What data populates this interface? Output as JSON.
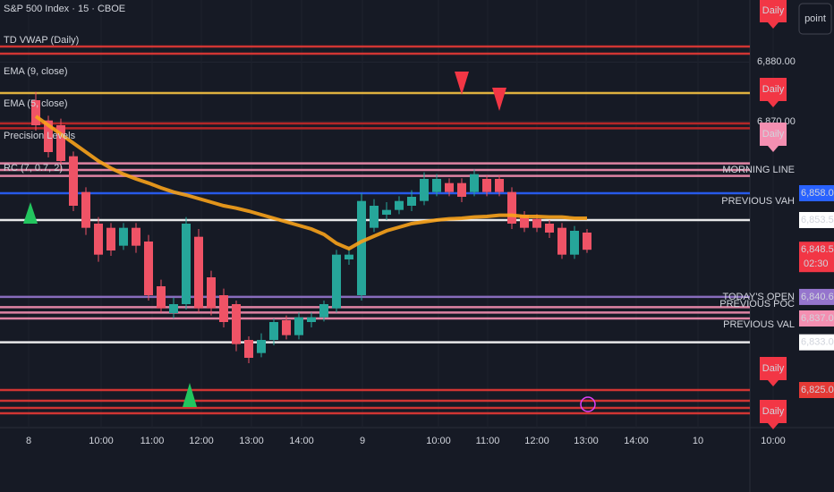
{
  "chart_data": {
    "type": "candlestick",
    "title": "S&P 500 Index · 15 · CBOE",
    "indicators": [
      "EMA (9, close)",
      "EMA (5, close)",
      "Precision Levels",
      "RC (7, 0.7, 2)"
    ],
    "up_color": "#26a69a",
    "down_color": "#ef5366",
    "open": [
      6873.6,
      6870.2,
      6869.4,
      6864.2,
      6858.2,
      6852.9,
      6852.2,
      6849.2,
      6852.2,
      6849.9,
      6842.4,
      6837.9,
      6839.4,
      6850.7,
      6843.9,
      6840.9,
      6839.4,
      6833.4,
      6831.2,
      6833.4,
      6836.7,
      6834.2,
      6836.4,
      6837.2,
      6838.7,
      6846.9,
      6840.9,
      6852.2,
      6854.4,
      6855.2,
      6855.9,
      6856.7,
      6858.2,
      6859.7,
      6859.7,
      6858.2,
      6860.4,
      6860.4,
      6858.2,
      6854.4,
      6853.7,
      6852.9,
      6852.2,
      6847.7,
      6851.4
    ],
    "high": [
      6875,
      6871,
      6870.5,
      6865,
      6859,
      6854,
      6853,
      6853,
      6853,
      6851,
      6843.5,
      6840.5,
      6854,
      6852,
      6845,
      6842,
      6840,
      6834,
      6834.5,
      6837,
      6837.5,
      6838,
      6838,
      6840,
      6848.5,
      6849,
      6858,
      6857,
      6856.5,
      6857.5,
      6858.5,
      6861.5,
      6861.2,
      6860.5,
      6860.5,
      6862,
      6861,
      6861,
      6859,
      6855,
      6854.5,
      6853.5,
      6853,
      6852.5,
      6852
    ],
    "low": [
      6868.5,
      6864,
      6862,
      6855,
      6851,
      6846.5,
      6847.5,
      6848.5,
      6848,
      6840,
      6838,
      6837,
      6838.5,
      6838,
      6837.5,
      6835.5,
      6831.5,
      6829.5,
      6830.5,
      6832.5,
      6833.5,
      6833.5,
      6835.5,
      6836.5,
      6838,
      6846,
      6840,
      6851.5,
      6853.5,
      6854.5,
      6855,
      6856,
      6857.5,
      6857.5,
      6856.5,
      6857.5,
      6857.5,
      6857.5,
      6852,
      6851.5,
      6851.5,
      6850.5,
      6847,
      6847,
      6848
    ],
    "close": [
      6869.4,
      6864.9,
      6863.4,
      6855.9,
      6852.2,
      6847.7,
      6848.4,
      6852.2,
      6849.2,
      6840.9,
      6838.7,
      6839.4,
      6852.9,
      6838.7,
      6838.7,
      6836.4,
      6832.7,
      6830.4,
      6833.4,
      6836.4,
      6834.2,
      6837.2,
      6837.2,
      6839.4,
      6847.7,
      6847.7,
      6856.7,
      6855.9,
      6855.2,
      6856.7,
      6857.4,
      6860.4,
      6860.4,
      6858.2,
      6857.4,
      6861.2,
      6858.2,
      6858.2,
      6852.9,
      6852.2,
      6852.2,
      6851.4,
      6847.7,
      6851.7,
      6848.52
    ],
    "series": [
      {
        "name": "TD VWAP (Daily)",
        "color": "#f7a21b",
        "values": [
          6870.9,
          6869.4,
          6867.9,
          6866.4,
          6864.9,
          6863.4,
          6862.2,
          6861.2,
          6860.4,
          6859.7,
          6858.9,
          6858.2,
          6857.7,
          6857.1,
          6856.5,
          6855.9,
          6855.5,
          6855,
          6854.4,
          6853.8,
          6853.2,
          6852.6,
          6852,
          6851.1,
          6849.6,
          6848.7,
          6849.9,
          6850.8,
          6851.7,
          6852.3,
          6852.9,
          6853.2,
          6853.5,
          6853.7,
          6853.8,
          6854,
          6854.1,
          6854.3,
          6854.3,
          6854.1,
          6854.1,
          6854,
          6854,
          6853.8,
          6853.8
        ]
      }
    ],
    "levels": [
      {
        "price": 6882.6,
        "color": "#e53935"
      },
      {
        "price": 6881.4,
        "color": "#e53935"
      },
      {
        "price": 6874.8,
        "color": "#f5c242"
      },
      {
        "price": 6869.7,
        "color": "#c62828"
      },
      {
        "price": 6868.9,
        "color": "#c62828"
      },
      {
        "price": 6863,
        "color": "#f48fb1"
      },
      {
        "price": 6861.9,
        "color": "#f48fb1"
      },
      {
        "price": 6860.9,
        "color": "#f48fb1"
      },
      {
        "price": 6858,
        "color": "#2962ff"
      },
      {
        "price": 6853.5,
        "color": "#ffffff"
      },
      {
        "price": 6840.61,
        "color": "#9575cd"
      },
      {
        "price": 6838.9,
        "color": "#f48fb1"
      },
      {
        "price": 6838,
        "color": "#f48fb1"
      },
      {
        "price": 6837,
        "color": "#f48fb1"
      },
      {
        "price": 6833,
        "color": "#ffffff"
      },
      {
        "price": 6825,
        "color": "#e53935"
      },
      {
        "price": 6823.2,
        "color": "#e53935"
      },
      {
        "price": 6822,
        "color": "#e53935"
      },
      {
        "price": 6821.1,
        "color": "#e53935"
      }
    ],
    "price_labels": [
      {
        "value": 6858,
        "label": "6,858.00",
        "color": "#2962ff",
        "text_color": "#ffffff"
      },
      {
        "value": 6853.5,
        "label": "6,853.50",
        "color": "#ffffff",
        "text_color": "#131722"
      },
      {
        "value": 6848.52,
        "label": "6,848.52",
        "color": "#f23645",
        "text_color": "#ffffff"
      },
      {
        "value": 6840.61,
        "label": "6,840.61",
        "color": "#9575cd",
        "text_color": "#ffffff"
      },
      {
        "value": 6837,
        "label": "6,837.00",
        "color": "#f48fb1",
        "text_color": "#131722"
      },
      {
        "value": 6833,
        "label": "6,833.00",
        "color": "#ffffff",
        "text_color": "#131722"
      },
      {
        "value": 6825,
        "label": "6,825.00",
        "color": "#e53935",
        "text_color": "#ffffff"
      }
    ],
    "countdown": "02:30",
    "ylim": [
      6818.7,
      6890.4
    ],
    "yticks": [
      {
        "value": 6880,
        "label": "6,880.00"
      },
      {
        "value": 6870,
        "label": "6,870.00"
      }
    ],
    "x_labels": [
      "8",
      "10:00",
      "11:00",
      "12:00",
      "13:00",
      "14:00",
      "9",
      "10:00",
      "11:00",
      "12:00",
      "13:00",
      "14:00",
      "10",
      "10:00"
    ],
    "level_labels": [
      "MORNING LINE",
      "PREVIOUS VAH",
      "TODAY'S OPEN",
      "PREVIOUS POC",
      "PREVIOUS VAL"
    ],
    "tags": [
      "Daily",
      "Daily",
      "Daily",
      "Daily",
      "Daily"
    ],
    "button": "point"
  }
}
